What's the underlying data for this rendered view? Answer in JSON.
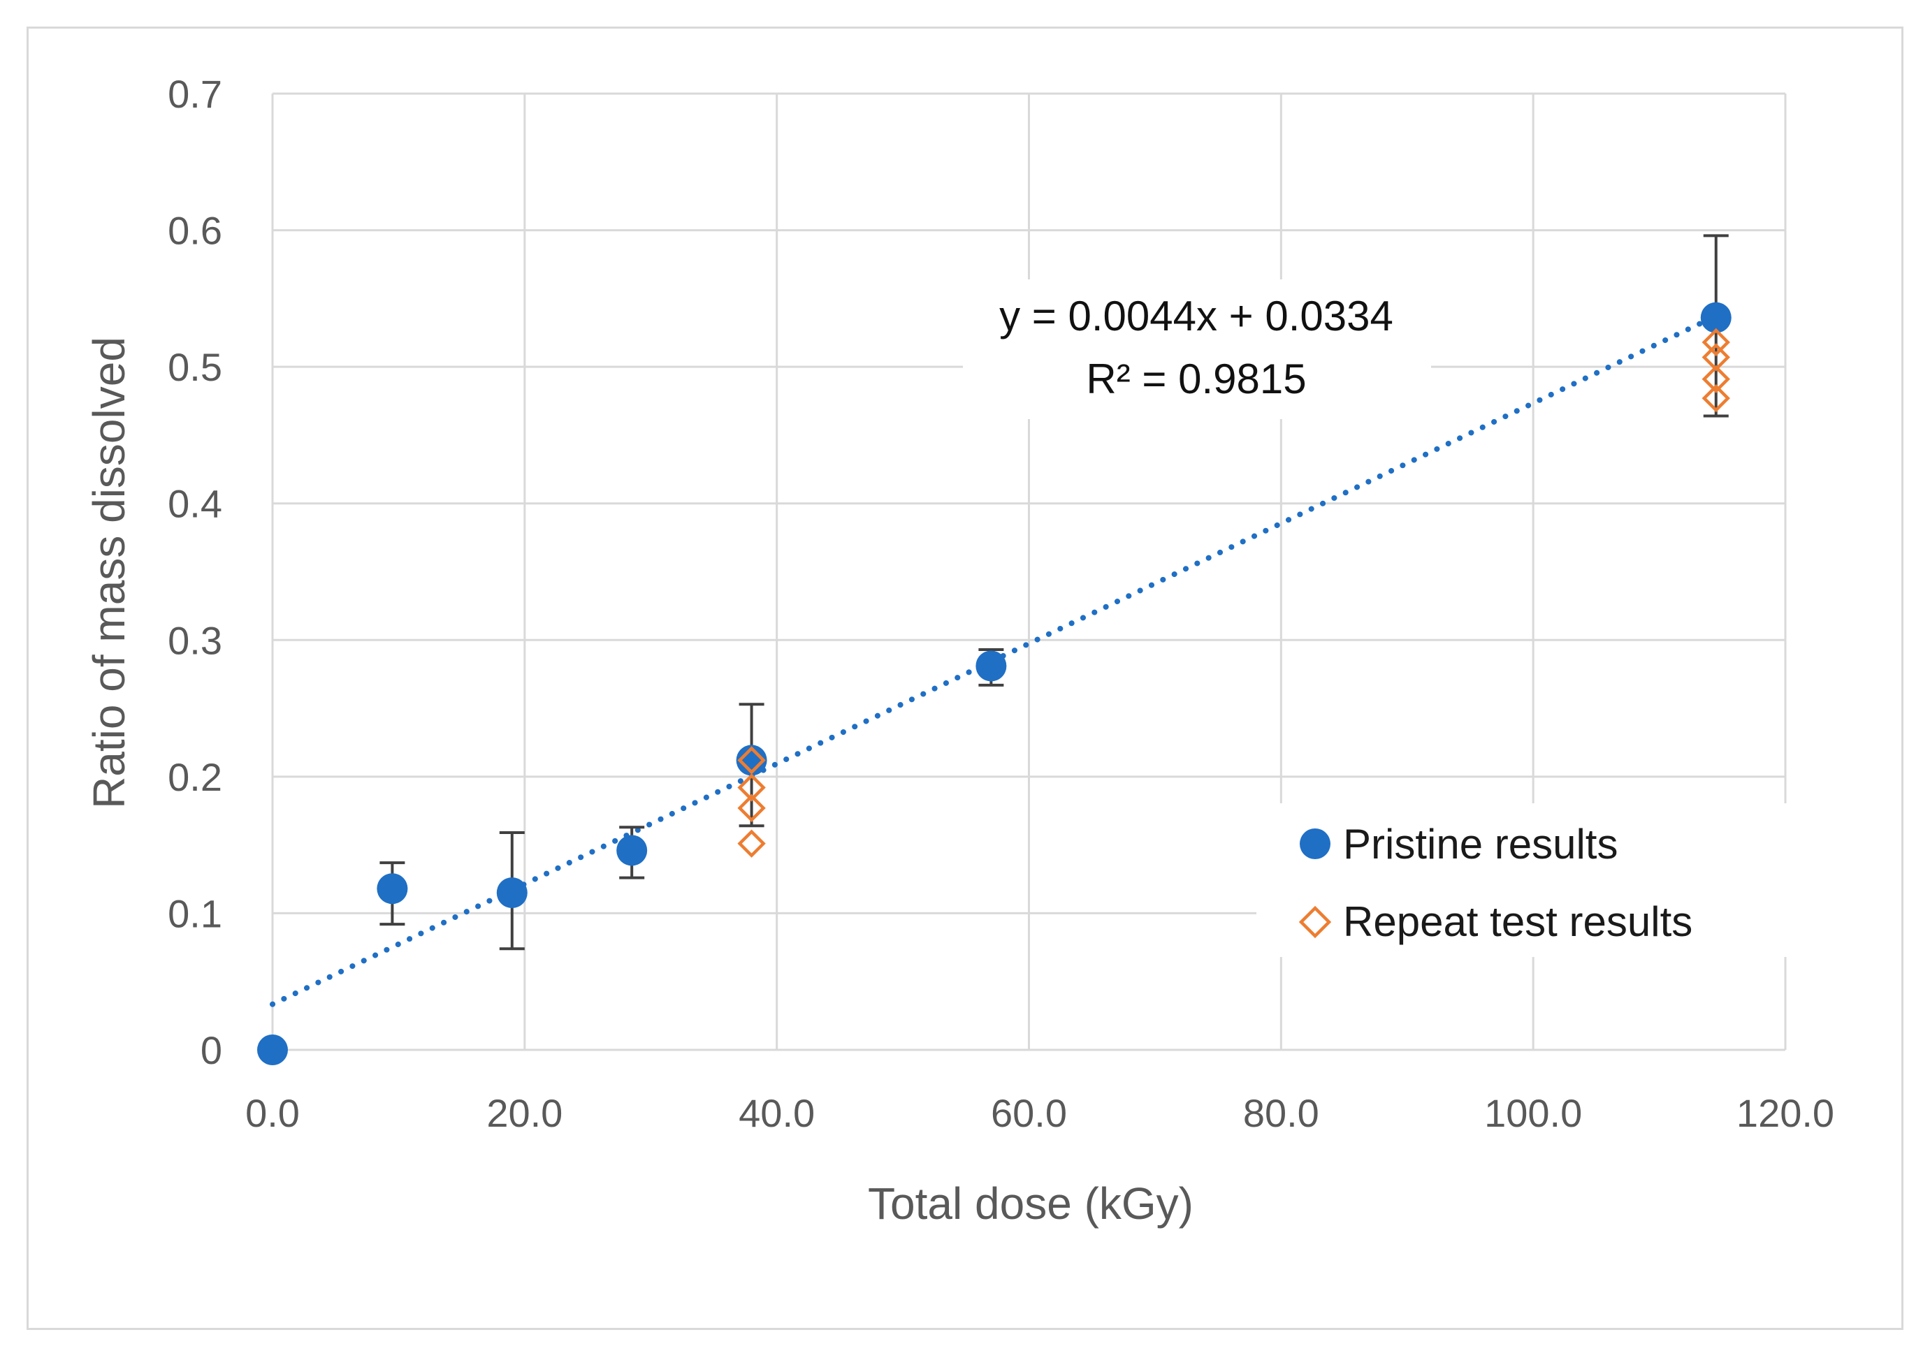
{
  "colors": {
    "pristine": "#1f6fc5",
    "repeat": "#ed7d31",
    "trendline": "#1f6fc5",
    "grid": "#d9d9d9",
    "errorbar": "#404040",
    "text": "#595959"
  },
  "chart_data": {
    "type": "scatter",
    "title": "",
    "xlabel": "Total dose (kGy)",
    "ylabel": "Ratio of mass dissolved",
    "xlim": [
      0,
      120
    ],
    "ylim": [
      0,
      0.7
    ],
    "grid": true,
    "x_ticks": [
      0,
      20,
      40,
      60,
      80,
      100,
      120
    ],
    "x_tick_labels": [
      "0.0",
      "20.0",
      "40.0",
      "60.0",
      "80.0",
      "100.0",
      "120.0"
    ],
    "y_ticks": [
      0,
      0.1,
      0.2,
      0.3,
      0.4,
      0.5,
      0.6,
      0.7
    ],
    "y_tick_labels": [
      "0",
      "0.1",
      "0.2",
      "0.3",
      "0.4",
      "0.5",
      "0.6",
      "0.7"
    ],
    "legend_position": "bottom-right",
    "series": [
      {
        "name": "Pristine results",
        "marker": "filled-circle",
        "x": [
          0,
          9.5,
          19,
          28.5,
          38,
          57,
          114.5
        ],
        "y": [
          0,
          0.118,
          0.115,
          0.146,
          0.212,
          0.281,
          0.536
        ],
        "error_low": [
          0,
          0.092,
          0.074,
          0.126,
          0.164,
          0.267,
          0.464
        ],
        "error_high": [
          0,
          0.137,
          0.159,
          0.163,
          0.253,
          0.293,
          0.596
        ]
      },
      {
        "name": "Repeat test results",
        "marker": "open-diamond",
        "x": [
          38,
          38,
          38,
          38,
          114.5,
          114.5,
          114.5,
          114.5
        ],
        "y": [
          0.212,
          0.192,
          0.177,
          0.151,
          0.518,
          0.507,
          0.491,
          0.477
        ]
      }
    ],
    "trendline": {
      "type": "linear",
      "slope": 0.0044,
      "intercept": 0.0334,
      "x_range": [
        0,
        114.5
      ],
      "equation": "y = 0.0044x + 0.0334",
      "r_squared": "R² = 0.9815"
    }
  }
}
